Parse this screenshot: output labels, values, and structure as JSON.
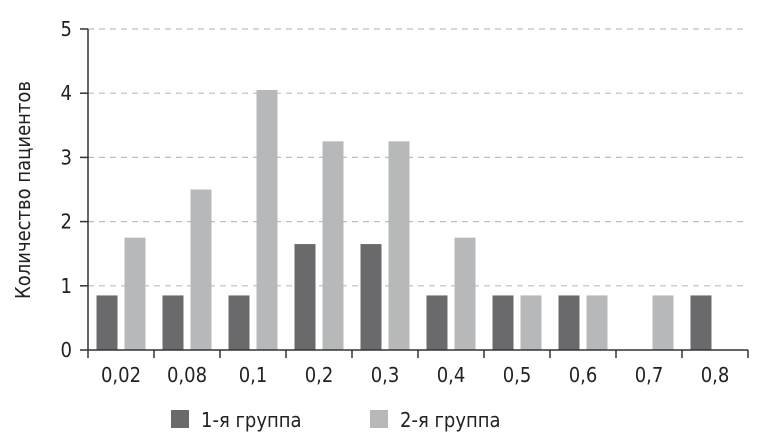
{
  "chart_data": {
    "type": "bar",
    "title": "",
    "xlabel": "",
    "ylabel": "Количество пациентов",
    "ylim": [
      0,
      5
    ],
    "yticks": [
      "0",
      "1",
      "2",
      "3",
      "4",
      "5"
    ],
    "grid": "horizontal-dashed",
    "legend_position": "bottom",
    "categories": [
      "0,02",
      "0,08",
      "0,1",
      "0,2",
      "0,3",
      "0,4",
      "0,5",
      "0,6",
      "0,7",
      "0,8"
    ],
    "series": [
      {
        "name": "1-я группа",
        "color": "#6a6a6c",
        "values": [
          0.85,
          0.85,
          0.85,
          1.65,
          1.65,
          0.85,
          0.85,
          0.85,
          0,
          0.85
        ]
      },
      {
        "name": "2-я группа",
        "color": "#b7b8ba",
        "values": [
          1.75,
          2.5,
          4.05,
          3.25,
          3.25,
          1.75,
          0.85,
          0.85,
          0.85,
          0
        ]
      }
    ]
  }
}
